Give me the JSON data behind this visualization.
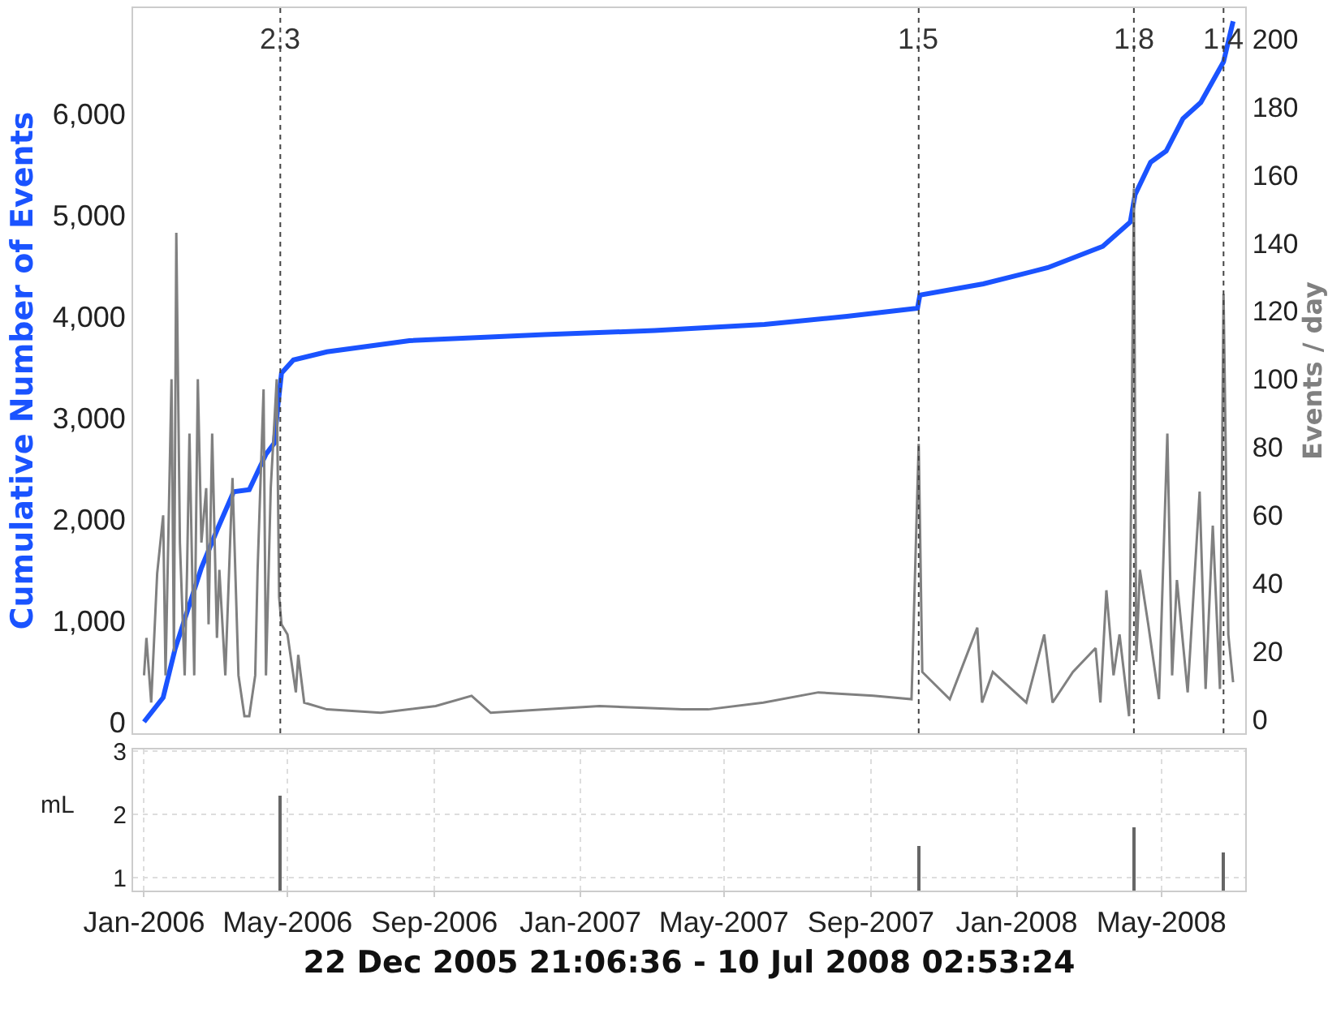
{
  "chart_data": [
    {
      "type": "line",
      "ylabel": "Cumulative Number of Events",
      "y2label": "Events / day",
      "xlim": [
        "2005-12-22T21:06",
        "2008-07-10T02:53"
      ],
      "ylim": [
        -112,
        7040
      ],
      "yticks": [
        0,
        {
          "value": 1000,
          "label": "1,000"
        },
        {
          "value": 2000,
          "label": "2,000"
        },
        {
          "value": 3000,
          "label": "3,000"
        },
        {
          "value": 4000,
          "label": "4,000"
        },
        {
          "value": 5000,
          "label": "5,000"
        },
        {
          "value": 6000,
          "label": "6,000"
        }
      ],
      "y2lim": [
        -4,
        209
      ],
      "y2ticks": [
        0,
        20,
        40,
        60,
        80,
        100,
        120,
        140,
        160,
        180,
        200
      ],
      "tick_labels": "y",
      "grid": false,
      "series": [
        {
          "color": "#808080",
          "axis": "y2",
          "x": [
            "2006-01-01",
            "2006-01-03",
            "2006-01-07",
            "2006-01-12",
            "2006-01-17",
            "2006-01-19",
            "2006-01-24",
            "2006-01-26",
            "2006-01-28",
            "2006-01-31",
            "2006-02-04",
            "2006-02-06",
            "2006-02-08",
            "2006-02-12",
            "2006-02-15",
            "2006-02-18",
            "2006-02-22",
            "2006-02-24",
            "2006-02-27",
            "2006-03-03",
            "2006-03-05",
            "2006-03-10",
            "2006-03-14",
            "2006-03-16",
            "2006-03-21",
            "2006-03-26",
            "2006-03-30",
            "2006-04-04",
            "2006-04-06",
            "2006-04-11",
            "2006-04-13",
            "2006-04-17",
            "2006-04-22",
            "2006-04-24",
            "2006-04-26",
            "2006-05-01",
            "2006-05-08",
            "2006-05-10",
            "2006-05-15",
            "2006-06-03",
            "2006-07-18",
            "2006-09-02",
            "2006-10-02",
            "2006-10-18",
            "2006-12-03",
            "2007-01-17",
            "2007-03-27",
            "2007-04-18",
            "2007-06-03",
            "2007-07-19",
            "2007-09-03",
            "2007-10-05",
            "2007-10-11",
            "2007-10-14",
            "2007-11-06",
            "2007-11-29",
            "2007-12-03",
            "2007-12-12",
            "2008-01-09",
            "2008-01-24",
            "2008-01-31",
            "2008-02-17",
            "2008-03-07",
            "2008-03-11",
            "2008-03-16",
            "2008-03-22",
            "2008-03-27",
            "2008-04-04",
            "2008-04-08",
            "2008-04-10",
            "2008-04-13",
            "2008-04-20",
            "2008-04-29",
            "2008-05-06",
            "2008-05-10",
            "2008-05-14",
            "2008-05-23",
            "2008-06-02",
            "2008-06-07",
            "2008-06-13",
            "2008-06-19",
            "2008-06-22",
            "2008-06-26",
            "2008-06-30"
          ],
          "values": [
            13,
            24,
            5,
            43,
            60,
            13,
            100,
            20,
            143,
            52,
            13,
            44,
            84,
            13,
            100,
            52,
            68,
            28,
            84,
            24,
            44,
            13,
            52,
            71,
            13,
            1,
            1,
            13,
            44,
            97,
            13,
            68,
            100,
            36,
            28,
            25,
            8,
            19,
            5,
            3,
            2,
            4,
            7,
            2,
            3,
            4,
            3,
            3,
            5,
            8,
            7,
            6,
            81,
            14,
            6,
            27,
            5,
            14,
            5,
            25,
            5,
            14,
            21,
            5,
            38,
            13,
            25,
            1,
            156,
            17,
            44,
            28,
            6,
            84,
            13,
            41,
            8,
            67,
            9,
            57,
            9,
            125,
            25,
            11
          ]
        },
        {
          "color": "#1a53ff",
          "x": [
            "2006-01-01",
            "2006-01-17",
            "2006-01-27",
            "2006-02-18",
            "2006-03-03",
            "2006-03-17",
            "2006-03-30",
            "2006-04-13",
            "2006-04-20",
            "2006-04-23",
            "2006-04-26",
            "2006-05-06",
            "2006-06-03",
            "2006-08-11",
            "2006-12-02",
            "2007-03-04",
            "2007-06-04",
            "2007-08-12",
            "2007-10-10",
            "2007-10-12",
            "2007-12-04",
            "2008-01-27",
            "2008-03-13",
            "2008-04-05",
            "2008-04-09",
            "2008-04-22",
            "2008-05-05",
            "2008-05-19",
            "2008-06-03",
            "2008-06-22",
            "2008-06-30"
          ],
          "values": [
            0,
            240,
            720,
            1520,
            1890,
            2270,
            2290,
            2640,
            2750,
            3120,
            3440,
            3570,
            3650,
            3760,
            3820,
            3860,
            3920,
            4000,
            4080,
            4210,
            4320,
            4480,
            4690,
            4930,
            5200,
            5520,
            5630,
            5950,
            6110,
            6510,
            6910
          ]
        }
      ],
      "ref_lines": [
        {
          "axis": "x",
          "value": "2006-04-25",
          "label": "2.3",
          "color": "#444444",
          "line_style": "dotted"
        },
        {
          "axis": "x",
          "value": "2007-10-11",
          "label": "1.5",
          "color": "#444444",
          "line_style": "dotted"
        },
        {
          "axis": "x",
          "value": "2008-04-08",
          "label": "1.8",
          "color": "#444444",
          "line_style": "dotted"
        },
        {
          "axis": "x",
          "value": "2008-06-22",
          "label": "1.4",
          "color": "#444444",
          "line_style": "dotted"
        }
      ]
    },
    {
      "type": "bar",
      "xlabel": "22 Dec 2005 21:06:36 - 10 Jul 2008 02:53:24",
      "ylabel": "mL",
      "x": [
        "2006-04-25",
        "2007-10-11",
        "2008-04-08",
        "2008-06-22"
      ],
      "values": [
        2.3,
        1.5,
        1.8,
        1.4
      ],
      "color": "#666666",
      "xlim": [
        "2005-12-22T21:06",
        "2008-07-10T02:53"
      ],
      "xticks": [
        {
          "value": "2006-01-01",
          "label": "Jan-2006"
        },
        {
          "value": "2006-05-01",
          "label": "May-2006"
        },
        {
          "value": "2006-09-01",
          "label": "Sep-2006"
        },
        {
          "value": "2007-01-01",
          "label": "Jan-2007"
        },
        {
          "value": "2007-05-01",
          "label": "May-2007"
        },
        {
          "value": "2007-09-01",
          "label": "Sep-2007"
        },
        {
          "value": "2008-01-01",
          "label": "Jan-2008"
        },
        {
          "value": "2008-05-01",
          "label": "May-2008"
        }
      ],
      "ylim": [
        0.8,
        3.03
      ],
      "yticks": [
        1,
        2,
        3
      ],
      "grid": true
    }
  ]
}
